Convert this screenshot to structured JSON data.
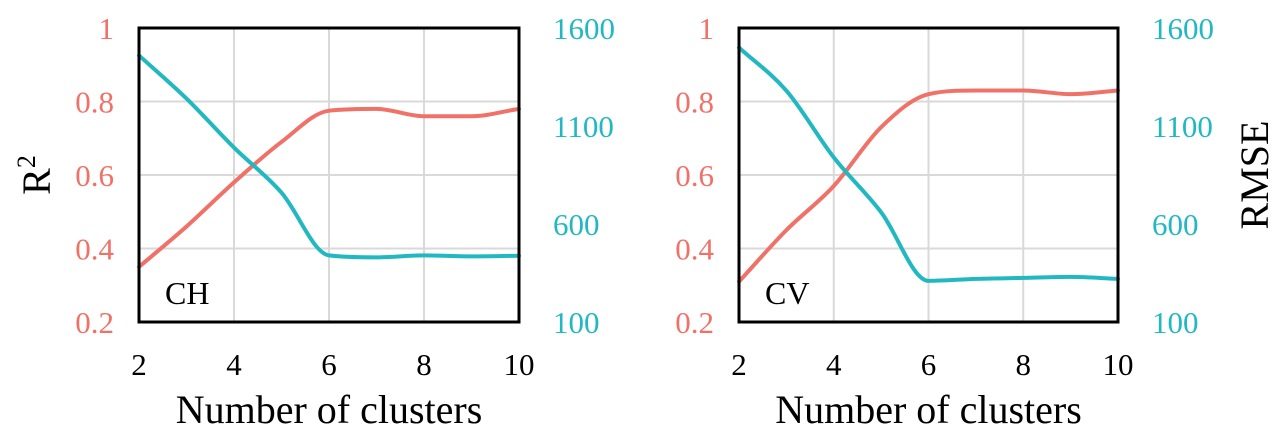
{
  "colors": {
    "r2": "#F07167",
    "rmse": "#22B8C1",
    "grid": "#D9D9D9",
    "frame": "#000000"
  },
  "left_axis_title": {
    "base": "R",
    "sup": "2"
  },
  "right_axis_title": "RMSE",
  "chart_data": [
    {
      "type": "line",
      "panel_label": "CH",
      "xlabel": "Number of clusters",
      "xlim": [
        2,
        10
      ],
      "x_ticks": [
        2,
        4,
        6,
        8,
        10
      ],
      "y_left": {
        "label": "R2",
        "lim": [
          0.2,
          1.0
        ],
        "ticks": [
          "0.2",
          "0.4",
          "0.6",
          "0.8",
          "1"
        ]
      },
      "y_right": {
        "label": "RMSE",
        "lim": [
          100,
          1600
        ],
        "ticks": [
          "100",
          "600",
          "1100",
          "1600"
        ]
      },
      "series": [
        {
          "name": "R2",
          "axis": "left",
          "x": [
            2,
            3,
            4,
            5,
            6,
            7,
            8,
            9,
            10
          ],
          "values": [
            0.35,
            0.46,
            0.58,
            0.69,
            0.775,
            0.78,
            0.76,
            0.76,
            0.78
          ]
        },
        {
          "name": "RMSE",
          "axis": "right",
          "x": [
            2,
            3,
            4,
            5,
            6,
            7,
            8,
            9,
            10
          ],
          "values": [
            1460,
            1240,
            990,
            760,
            440,
            430,
            440,
            435,
            438
          ]
        }
      ]
    },
    {
      "type": "line",
      "panel_label": "CV",
      "xlabel": "Number of clusters",
      "xlim": [
        2,
        10
      ],
      "x_ticks": [
        2,
        4,
        6,
        8,
        10
      ],
      "y_left": {
        "label": "R2",
        "lim": [
          0.2,
          1.0
        ],
        "ticks": [
          "0.2",
          "0.4",
          "0.6",
          "0.8",
          "1"
        ]
      },
      "y_right": {
        "label": "RMSE",
        "lim": [
          100,
          1600
        ],
        "ticks": [
          "100",
          "600",
          "1100",
          "1600"
        ]
      },
      "series": [
        {
          "name": "R2",
          "axis": "left",
          "x": [
            2,
            3,
            4,
            5,
            6,
            7,
            8,
            9,
            10
          ],
          "values": [
            0.31,
            0.45,
            0.57,
            0.73,
            0.82,
            0.83,
            0.83,
            0.82,
            0.83
          ]
        },
        {
          "name": "RMSE",
          "axis": "right",
          "x": [
            2,
            3,
            4,
            5,
            6,
            7,
            8,
            9,
            10
          ],
          "values": [
            1500,
            1280,
            940,
            660,
            310,
            320,
            325,
            330,
            320
          ]
        }
      ]
    }
  ]
}
